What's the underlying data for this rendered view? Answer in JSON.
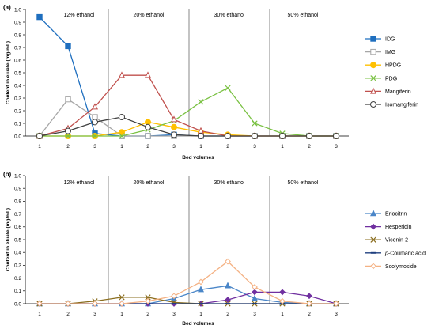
{
  "chart_data": [
    {
      "type": "line",
      "panel_label": "(a)",
      "xlabel": "Bed volumes",
      "ylabel": "Content in eluate (mg/mL)",
      "ylim": [
        0,
        1.0
      ],
      "yticks": [
        "0.0",
        "0.1",
        "0.2",
        "0.3",
        "0.4",
        "0.5",
        "0.6",
        "0.7",
        "0.8",
        "0.9",
        "1.0"
      ],
      "x_tick_labels": [
        "1",
        "2",
        "3",
        "1",
        "2",
        "3",
        "1",
        "2",
        "3",
        "1",
        "2",
        "3"
      ],
      "regions": [
        "12% ethanol",
        "20% ethanol",
        "30% ethanol",
        "50% ethanol"
      ],
      "grid": false,
      "legend_position": "right",
      "series": [
        {
          "name": "IDG",
          "color": "#1f6fbf",
          "marker": "square-filled",
          "values": [
            0.94,
            0.71,
            0.02,
            0.0,
            0.0,
            0.01,
            0.0,
            0.0,
            0.0,
            0.0,
            0.0,
            0.0
          ]
        },
        {
          "name": "IMG",
          "color": "#a6a6a6",
          "marker": "square-open",
          "values": [
            0.0,
            0.29,
            0.15,
            0.0,
            0.0,
            0.0,
            0.0,
            0.0,
            0.0,
            0.0,
            0.0,
            0.0
          ]
        },
        {
          "name": "HPDG",
          "color": "#ffc000",
          "marker": "circle-filled",
          "values": [
            0.0,
            0.0,
            0.0,
            0.03,
            0.11,
            0.07,
            0.03,
            0.01,
            0.0,
            0.0,
            0.0,
            0.0
          ]
        },
        {
          "name": "PDG",
          "color": "#7ac143",
          "marker": "x",
          "values": [
            0.0,
            0.0,
            0.0,
            0.0,
            0.05,
            0.12,
            0.27,
            0.38,
            0.1,
            0.02,
            0.0,
            0.0
          ]
        },
        {
          "name": "Mangiferin",
          "color": "#c0504d",
          "marker": "triangle-open",
          "values": [
            0.0,
            0.06,
            0.23,
            0.48,
            0.48,
            0.13,
            0.04,
            0.0,
            0.0,
            0.0,
            0.0,
            0.0
          ]
        },
        {
          "name": "Isomangiferin",
          "color": "#404040",
          "marker": "circle-open",
          "values": [
            0.0,
            0.04,
            0.11,
            0.15,
            0.07,
            0.01,
            0.0,
            0.0,
            0.0,
            0.0,
            0.0,
            0.0
          ]
        }
      ]
    },
    {
      "type": "line",
      "panel_label": "(b)",
      "xlabel": "Bed volumes",
      "ylabel": "Content in eluate (mg/mL)",
      "ylim": [
        0,
        1.0
      ],
      "yticks": [
        "0.0",
        "0.1",
        "0.2",
        "0.3",
        "0.4",
        "0.5",
        "0.6",
        "0.7",
        "0.8",
        "0.9",
        "1.0"
      ],
      "x_tick_labels": [
        "1",
        "2",
        "3",
        "1",
        "2",
        "3",
        "1",
        "2",
        "3",
        "1",
        "2",
        "3"
      ],
      "regions": [
        "12% ethanol",
        "20% ethanol",
        "30% ethanol",
        "50% ethanol"
      ],
      "grid": false,
      "legend_position": "right",
      "series": [
        {
          "name": "Eriocitrin",
          "color": "#4a86c8",
          "marker": "triangle-filled",
          "values": [
            0.0,
            0.0,
            0.0,
            0.0,
            0.0,
            0.04,
            0.11,
            0.14,
            0.04,
            0.01,
            0.0,
            0.0
          ]
        },
        {
          "name": "Hesperidin",
          "color": "#7030a0",
          "marker": "diamond-filled",
          "values": [
            0.0,
            0.0,
            0.0,
            0.0,
            0.0,
            0.0,
            0.0,
            0.03,
            0.09,
            0.09,
            0.06,
            0.0
          ]
        },
        {
          "name": "Vicenin-2",
          "color": "#8a6d1e",
          "marker": "x",
          "values": [
            0.0,
            0.0,
            0.02,
            0.05,
            0.05,
            0.01,
            0.0,
            0.0,
            0.0,
            0.0,
            0.0,
            0.0
          ]
        },
        {
          "name": "p-Coumaric acid",
          "color": "#1f3f7f",
          "marker": "dash",
          "values": [
            0.0,
            0.0,
            0.0,
            0.0,
            0.0,
            0.0,
            0.0,
            0.0,
            0.0,
            0.0,
            0.0,
            0.0
          ]
        },
        {
          "name": "Scolymoside",
          "color": "#f4b183",
          "marker": "diamond-open",
          "values": [
            0.0,
            0.0,
            0.0,
            0.0,
            0.02,
            0.06,
            0.17,
            0.33,
            0.13,
            0.02,
            0.0,
            0.0
          ]
        }
      ]
    }
  ]
}
